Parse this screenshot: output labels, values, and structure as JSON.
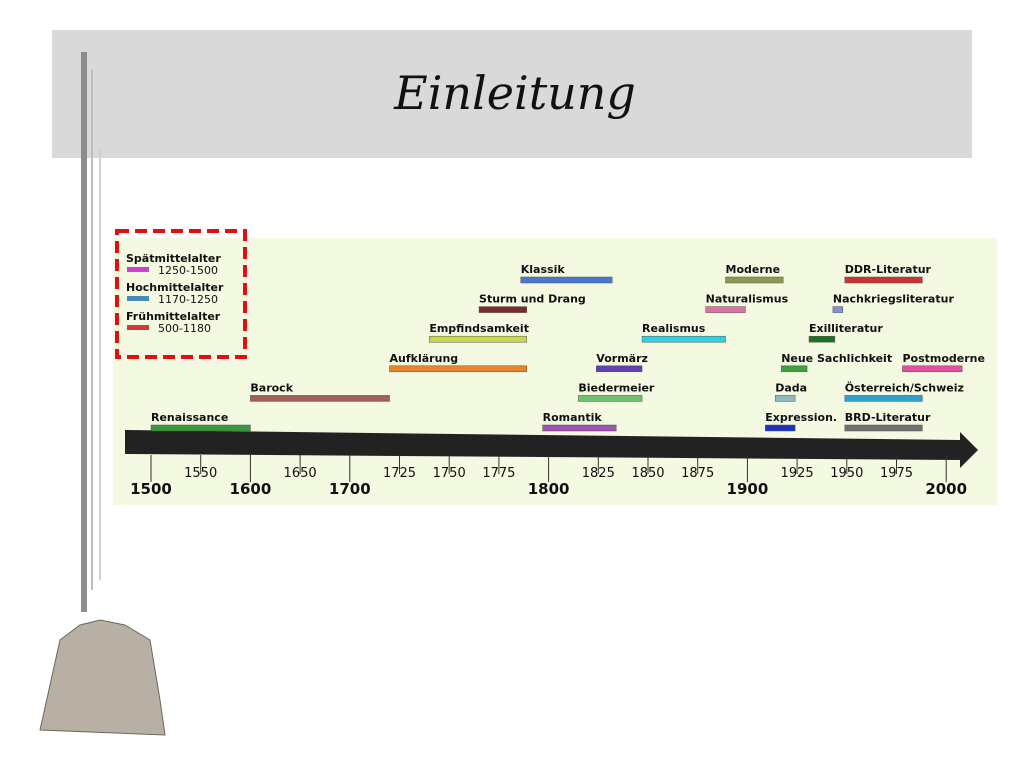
{
  "slide": {
    "title": "Einleitung"
  },
  "legend": [
    {
      "label": "Spätmittelalter",
      "range": "1250-1500",
      "color": "#d040d0"
    },
    {
      "label": "Hochmittelalter",
      "range": "1170-1250",
      "color": "#4a8ab8"
    },
    {
      "label": "Frühmittelalter",
      "range": "500-1180",
      "color": "#d03a3a"
    }
  ],
  "timeline": {
    "xticks": [
      1500,
      1550,
      1600,
      1650,
      1700,
      1725,
      1750,
      1775,
      1800,
      1825,
      1850,
      1875,
      1900,
      1925,
      1950,
      1975,
      2000
    ],
    "lanes": [
      [
        {
          "label": "Renaissance",
          "start": 1500,
          "end": 1600,
          "color": "#3a9a3a"
        },
        {
          "label": "Romantik",
          "start": 1797,
          "end": 1834,
          "color": "#a050b0"
        },
        {
          "label": "Expression.",
          "start": 1909,
          "end": 1924,
          "color": "#2030c0"
        },
        {
          "label": "BRD-Literatur",
          "start": 1949,
          "end": 1988,
          "color": "#707070"
        }
      ],
      [
        {
          "label": "Barock",
          "start": 1600,
          "end": 1720,
          "color": "#a0615a"
        },
        {
          "label": "Biedermeier",
          "start": 1815,
          "end": 1847,
          "color": "#70c070"
        },
        {
          "label": "Dada",
          "start": 1914,
          "end": 1924,
          "color": "#90b8c0"
        },
        {
          "label": "Österreich/Schweiz",
          "start": 1949,
          "end": 1988,
          "color": "#30a0d0"
        }
      ],
      [
        {
          "label": "Aufklärung",
          "start": 1720,
          "end": 1789,
          "color": "#e8842c"
        },
        {
          "label": "Vormärz",
          "start": 1824,
          "end": 1847,
          "color": "#6040b0"
        },
        {
          "label": "Neue Sachlichkeit",
          "start": 1917,
          "end": 1930,
          "color": "#40a040"
        },
        {
          "label": "Postmoderne",
          "start": 1978,
          "end": 2008,
          "color": "#e050a0"
        }
      ],
      [
        {
          "label": "Empfindsamkeit",
          "start": 1740,
          "end": 1789,
          "color": "#c8d84a"
        },
        {
          "label": "Realismus",
          "start": 1847,
          "end": 1889,
          "color": "#30d0e0"
        },
        {
          "label": "Exilliteratur",
          "start": 1931,
          "end": 1944,
          "color": "#207020"
        }
      ],
      [
        {
          "label": "Sturm und Drang",
          "start": 1765,
          "end": 1789,
          "color": "#7a2a2a"
        },
        {
          "label": "Naturalismus",
          "start": 1879,
          "end": 1899,
          "color": "#e070a0"
        },
        {
          "label": "Nachkriegsliteratur",
          "start": 1943,
          "end": 1948,
          "color": "#8090e0"
        }
      ],
      [
        {
          "label": "Klassik",
          "start": 1786,
          "end": 1832,
          "color": "#4a78d0"
        },
        {
          "label": "Moderne",
          "start": 1889,
          "end": 1918,
          "color": "#909850"
        },
        {
          "label": "DDR-Literatur",
          "start": 1949,
          "end": 1988,
          "color": "#d03030"
        }
      ]
    ]
  }
}
